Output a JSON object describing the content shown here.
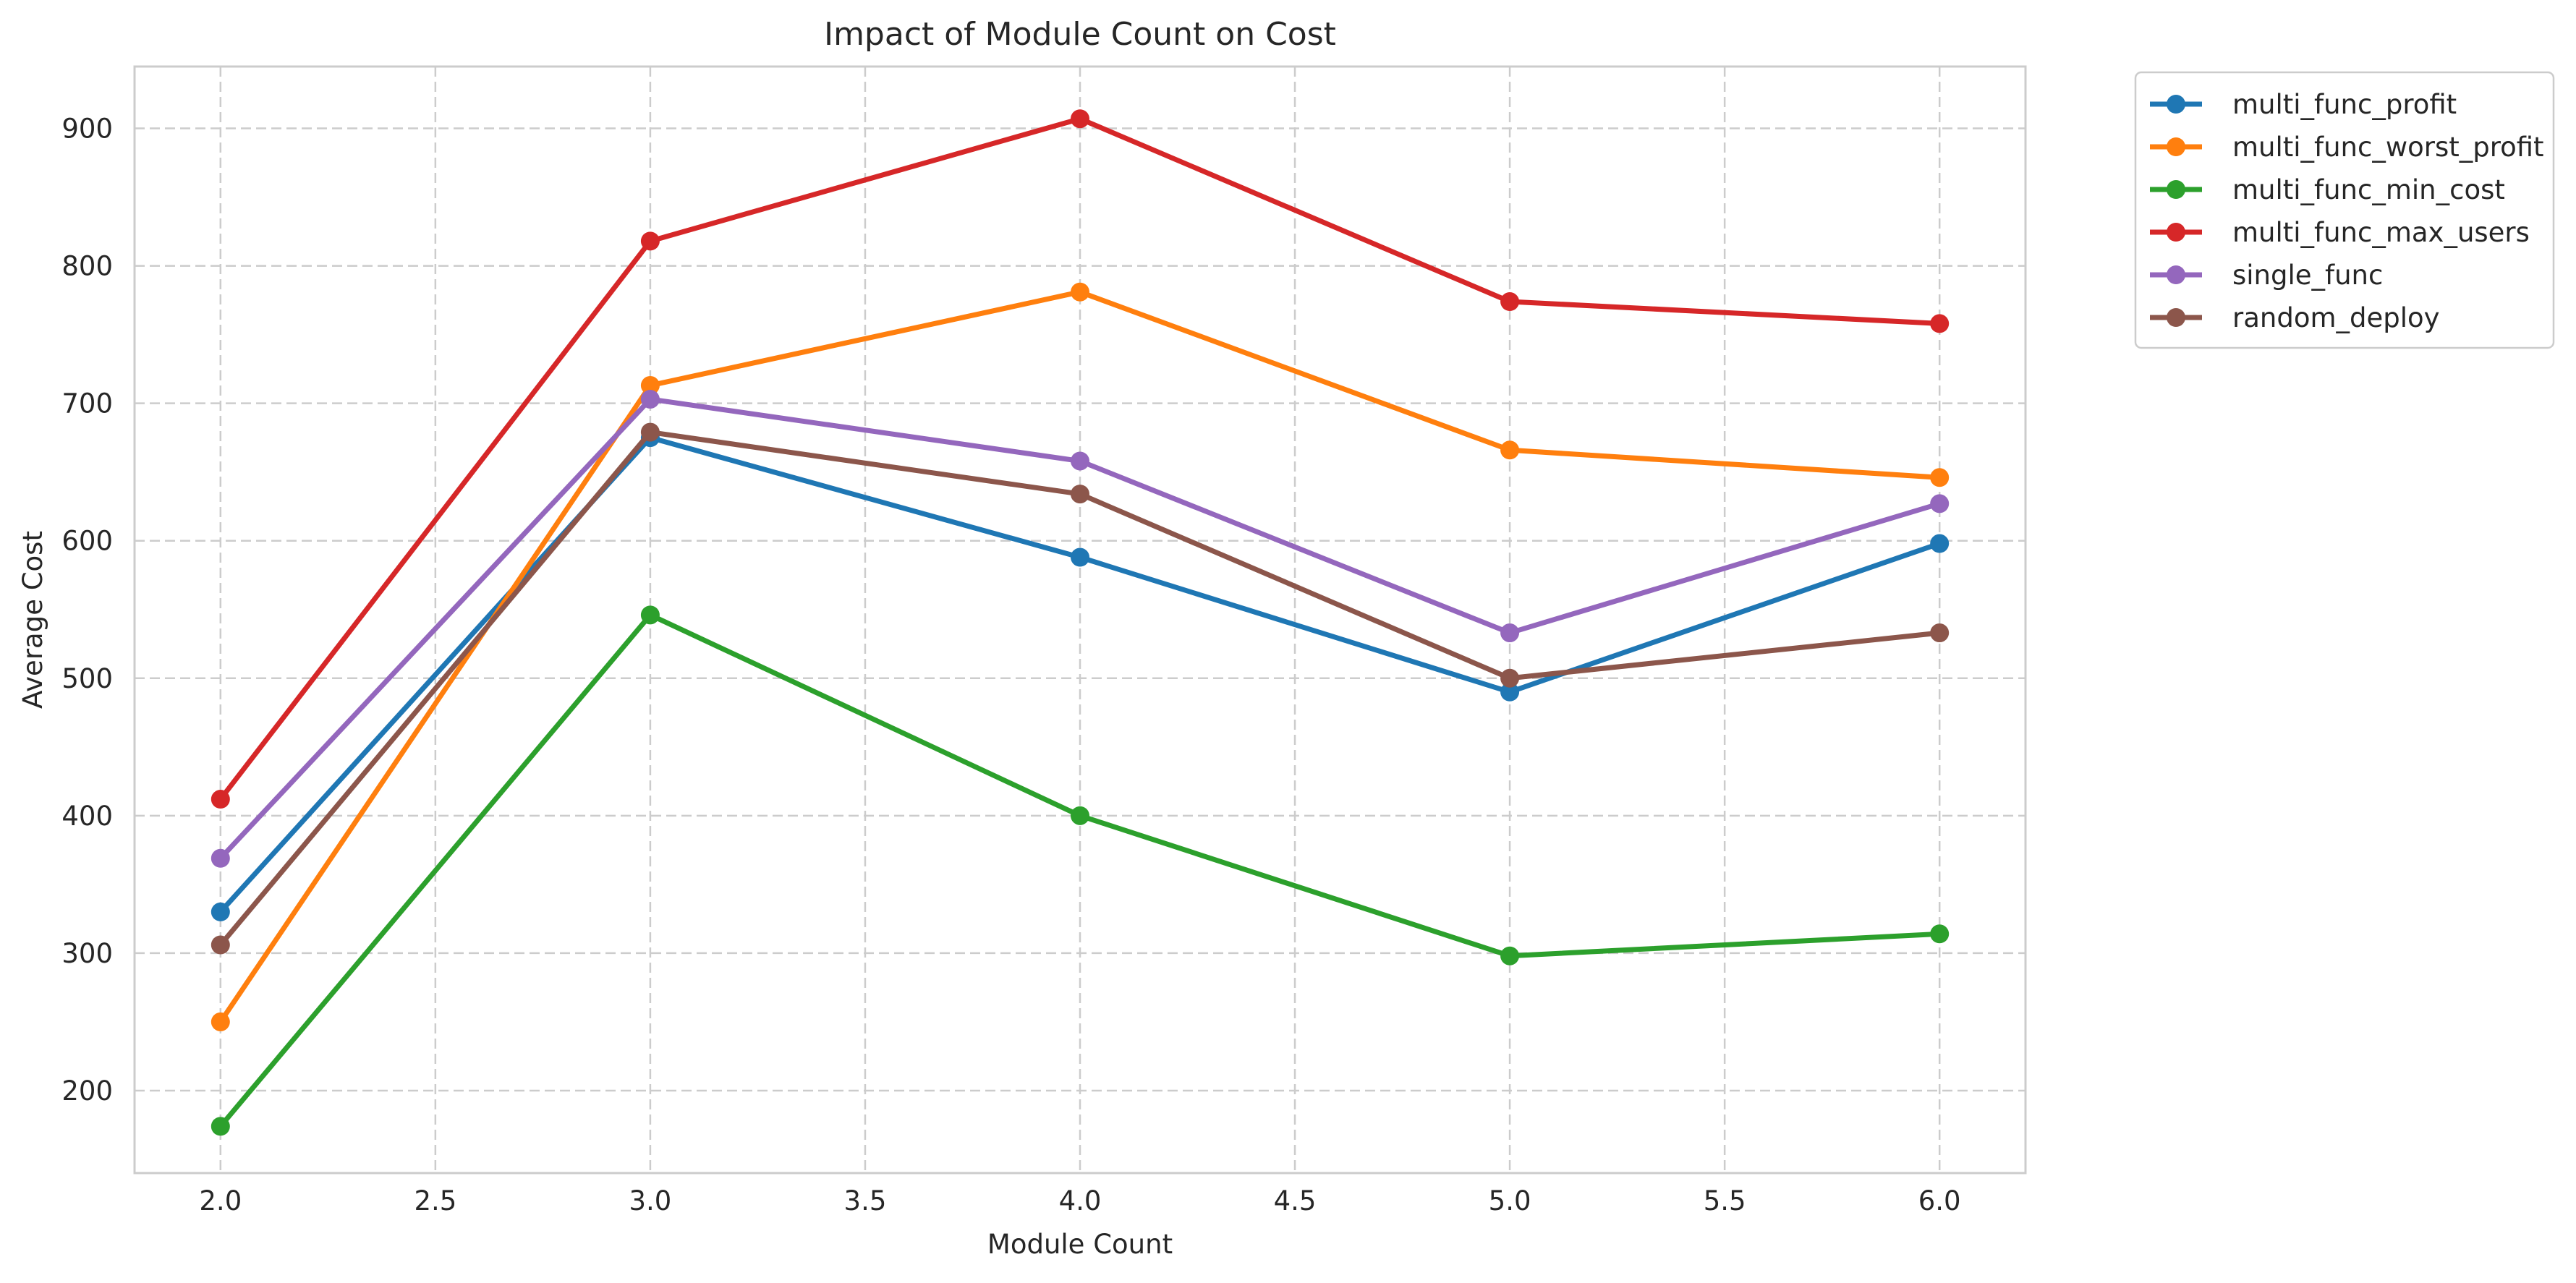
{
  "chart_data": {
    "type": "line",
    "title": "Impact of Module Count on Cost",
    "xlabel": "Module Count",
    "ylabel": "Average Cost",
    "xlim": [
      1.8,
      6.2
    ],
    "ylim": [
      140,
      945
    ],
    "xticks": [
      2.0,
      2.5,
      3.0,
      3.5,
      4.0,
      4.5,
      5.0,
      5.5,
      6.0
    ],
    "xtick_labels": [
      "2.0",
      "2.5",
      "3.0",
      "3.5",
      "4.0",
      "4.5",
      "5.0",
      "5.5",
      "6.0"
    ],
    "yticks": [
      200,
      300,
      400,
      500,
      600,
      700,
      800,
      900
    ],
    "ytick_labels": [
      "200",
      "300",
      "400",
      "500",
      "600",
      "700",
      "800",
      "900"
    ],
    "grid": true,
    "legend_placement": "outside-top-right",
    "x": [
      2.0,
      3.0,
      4.0,
      5.0,
      6.0
    ],
    "series": [
      {
        "name": "multi_func_profit",
        "color": "#1f77b4",
        "values": [
          330,
          675,
          588,
          490,
          598
        ]
      },
      {
        "name": "multi_func_worst_profit",
        "color": "#ff7f0e",
        "values": [
          250,
          713,
          781,
          666,
          646
        ]
      },
      {
        "name": "multi_func_min_cost",
        "color": "#2ca02c",
        "values": [
          174,
          546,
          400,
          298,
          314
        ]
      },
      {
        "name": "multi_func_max_users",
        "color": "#d62728",
        "values": [
          412,
          818,
          907,
          774,
          758
        ]
      },
      {
        "name": "single_func",
        "color": "#9467bd",
        "values": [
          369,
          703,
          658,
          533,
          627
        ]
      },
      {
        "name": "random_deploy",
        "color": "#8c564b",
        "values": [
          306,
          679,
          634,
          500,
          533
        ]
      }
    ]
  }
}
